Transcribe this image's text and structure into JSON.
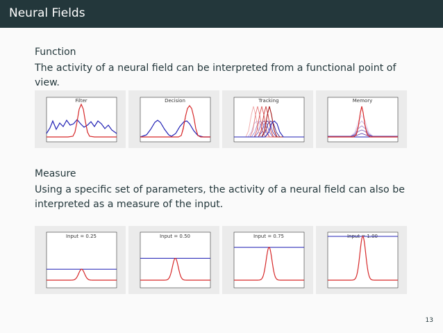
{
  "header": {
    "title": "Neural Fields"
  },
  "function_section": {
    "heading": "Function",
    "text": "The activity of a neural field can be interpreted from a functional point of view.",
    "panels": [
      {
        "label": "Filter"
      },
      {
        "label": "Decision"
      },
      {
        "label": "Tracking"
      },
      {
        "label": "Memory"
      }
    ]
  },
  "measure_section": {
    "heading": "Measure",
    "text": "Using a specific set of parameters, the activity of a neural field can also be interpreted as a measure of the input.",
    "panels": [
      {
        "label": "Input = 0.25",
        "input": 0.25
      },
      {
        "label": "Input = 0.50",
        "input": 0.5
      },
      {
        "label": "Input = 0.75",
        "input": 0.75
      },
      {
        "label": "Input = 1.00",
        "input": 1.0
      }
    ]
  },
  "colors": {
    "activity": "#d62728",
    "input": "#1f1fb4",
    "titlebar": "#23373b"
  },
  "footer": {
    "page_number": "13"
  }
}
